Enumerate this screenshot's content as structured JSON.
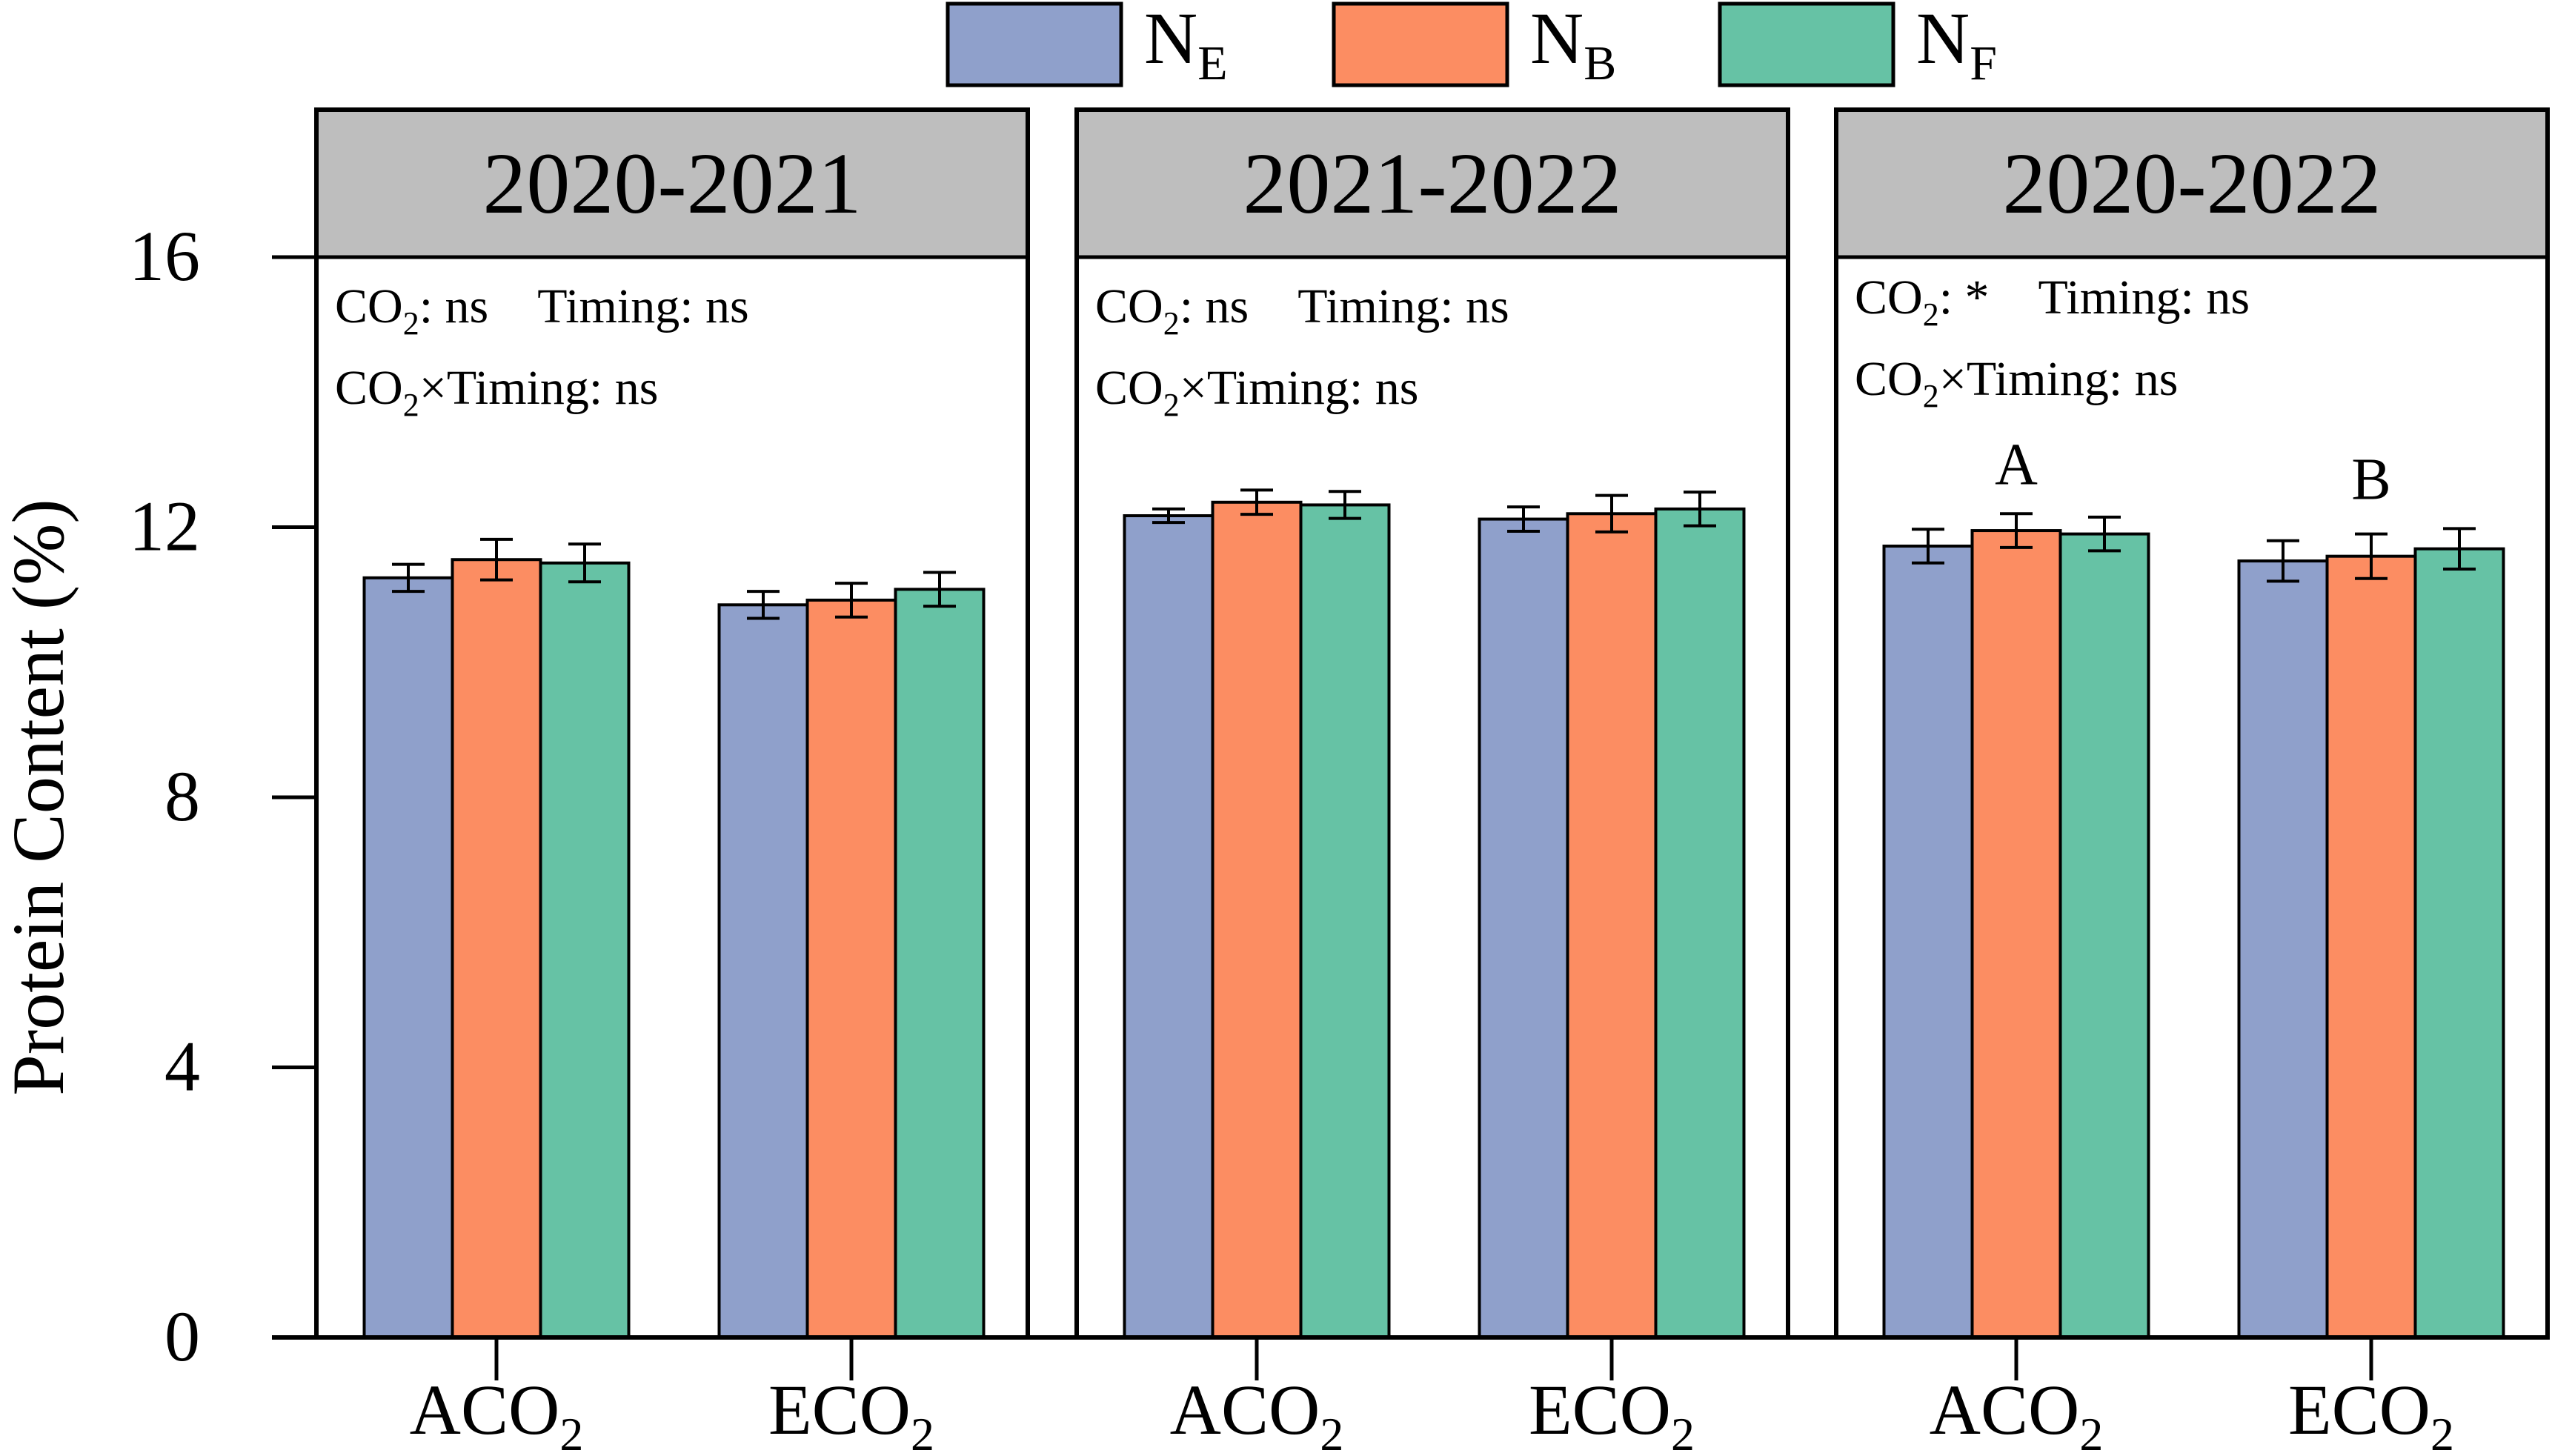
{
  "chart_data": {
    "type": "bar",
    "ylabel": "Protein Content (%)",
    "ylim": [
      0,
      16
    ],
    "yticks": [
      "0",
      "4",
      "8",
      "12",
      "16"
    ],
    "legend": {
      "placement": "top-center",
      "entries": [
        {
          "base": "N",
          "sub": "E",
          "color": "#8FA0CB"
        },
        {
          "base": "N",
          "sub": "B",
          "color": "#FC8D62"
        },
        {
          "base": "N",
          "sub": "F",
          "color": "#66C2A5"
        }
      ]
    },
    "categories": [
      {
        "base": "ACO",
        "sub": "2"
      },
      {
        "base": "ECO",
        "sub": "2"
      }
    ],
    "panels": [
      {
        "title": "2020-2021",
        "stats": [
          [
            {
              "t": "CO",
              "s": "2"
            },
            {
              "t": ": ns"
            },
            {
              "t": "Timing: ns",
              "gap": true
            }
          ],
          [
            {
              "t": "CO",
              "s": "2"
            },
            {
              "t": "×Timing: ns"
            }
          ]
        ],
        "series": [
          {
            "name": "NE",
            "values": [
              11.25,
              10.85
            ],
            "errors": [
              0.2,
              0.2
            ]
          },
          {
            "name": "NB",
            "values": [
              11.52,
              10.92
            ],
            "errors": [
              0.3,
              0.25
            ]
          },
          {
            "name": "NF",
            "values": [
              11.47,
              11.08
            ],
            "errors": [
              0.28,
              0.25
            ]
          }
        ],
        "letters": [
          "",
          ""
        ]
      },
      {
        "title": "2021-2022",
        "stats": [
          [
            {
              "t": "CO",
              "s": "2"
            },
            {
              "t": ": ns"
            },
            {
              "t": "Timing: ns",
              "gap": true
            }
          ],
          [
            {
              "t": "CO",
              "s": "2"
            },
            {
              "t": "×Timing: ns"
            }
          ]
        ],
        "series": [
          {
            "name": "NE",
            "values": [
              12.17,
              12.12
            ],
            "errors": [
              0.1,
              0.18
            ]
          },
          {
            "name": "NB",
            "values": [
              12.37,
              12.2
            ],
            "errors": [
              0.18,
              0.27
            ]
          },
          {
            "name": "NF",
            "values": [
              12.33,
              12.27
            ],
            "errors": [
              0.2,
              0.25
            ]
          }
        ],
        "letters": [
          "",
          ""
        ]
      },
      {
        "title": "2020-2022",
        "stats": [
          [
            {
              "t": "CO",
              "s": "2"
            },
            {
              "t": ": *"
            },
            {
              "t": "Timing: ns",
              "gap": true
            }
          ],
          [
            {
              "t": "CO",
              "s": "2"
            },
            {
              "t": "×Timing: ns"
            }
          ]
        ],
        "series": [
          {
            "name": "NE",
            "values": [
              11.72,
              11.5
            ],
            "errors": [
              0.25,
              0.3
            ]
          },
          {
            "name": "NB",
            "values": [
              11.95,
              11.57
            ],
            "errors": [
              0.25,
              0.33
            ]
          },
          {
            "name": "NF",
            "values": [
              11.9,
              11.68
            ],
            "errors": [
              0.25,
              0.3
            ]
          }
        ],
        "letters": [
          "A",
          "B"
        ]
      }
    ]
  }
}
